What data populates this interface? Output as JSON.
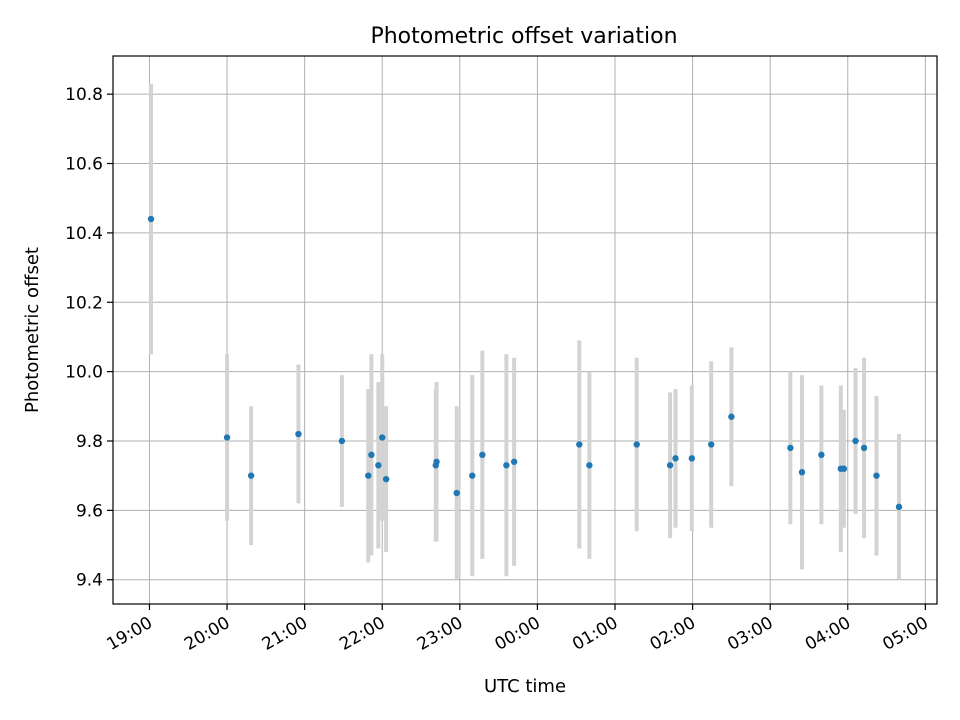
{
  "chart_data": {
    "type": "scatter",
    "title": "Photometric offset variation",
    "xlabel": "UTC time",
    "ylabel": "Photometric offset",
    "x_axis": "time",
    "xlim_hours": [
      18.53,
      29.15
    ],
    "ylim": [
      9.33,
      10.91
    ],
    "grid": true,
    "legend": "none",
    "x_ticks": [
      {
        "t": 19,
        "label": "19:00"
      },
      {
        "t": 20,
        "label": "20:00"
      },
      {
        "t": 21,
        "label": "21:00"
      },
      {
        "t": 22,
        "label": "22:00"
      },
      {
        "t": 23,
        "label": "23:00"
      },
      {
        "t": 24,
        "label": "00:00"
      },
      {
        "t": 25,
        "label": "01:00"
      },
      {
        "t": 26,
        "label": "02:00"
      },
      {
        "t": 27,
        "label": "03:00"
      },
      {
        "t": 28,
        "label": "04:00"
      },
      {
        "t": 29,
        "label": "05:00"
      }
    ],
    "y_ticks": [
      {
        "v": 9.4,
        "label": "9.4"
      },
      {
        "v": 9.6,
        "label": "9.6"
      },
      {
        "v": 9.8,
        "label": "9.8"
      },
      {
        "v": 10.0,
        "label": "10.0"
      },
      {
        "v": 10.2,
        "label": "10.2"
      },
      {
        "v": 10.4,
        "label": "10.4"
      },
      {
        "v": 10.6,
        "label": "10.6"
      },
      {
        "v": 10.8,
        "label": "10.8"
      }
    ],
    "colors": {
      "point": "#1f77b4",
      "errorbar": "#d3d3d3",
      "grid": "#b0b0b0"
    },
    "points": [
      {
        "t": 19.02,
        "y": 10.44,
        "err": 0.39
      },
      {
        "t": 20.0,
        "y": 9.81,
        "err": 0.24
      },
      {
        "t": 20.31,
        "y": 9.7,
        "err": 0.2
      },
      {
        "t": 20.92,
        "y": 9.82,
        "err": 0.2
      },
      {
        "t": 21.48,
        "y": 9.8,
        "err": 0.19
      },
      {
        "t": 21.82,
        "y": 9.7,
        "err": 0.25
      },
      {
        "t": 21.86,
        "y": 9.76,
        "err": 0.29
      },
      {
        "t": 21.95,
        "y": 9.73,
        "err": 0.24
      },
      {
        "t": 22.0,
        "y": 9.81,
        "err": 0.24
      },
      {
        "t": 22.05,
        "y": 9.69,
        "err": 0.21
      },
      {
        "t": 22.69,
        "y": 9.73,
        "err": 0.22
      },
      {
        "t": 22.7,
        "y": 9.74,
        "err": 0.23
      },
      {
        "t": 22.96,
        "y": 9.65,
        "err": 0.25
      },
      {
        "t": 23.16,
        "y": 9.7,
        "err": 0.29
      },
      {
        "t": 23.29,
        "y": 9.76,
        "err": 0.3
      },
      {
        "t": 23.6,
        "y": 9.73,
        "err": 0.32
      },
      {
        "t": 23.7,
        "y": 9.74,
        "err": 0.3
      },
      {
        "t": 24.54,
        "y": 9.79,
        "err": 0.3
      },
      {
        "t": 24.67,
        "y": 9.73,
        "err": 0.27
      },
      {
        "t": 25.28,
        "y": 9.79,
        "err": 0.25
      },
      {
        "t": 25.71,
        "y": 9.73,
        "err": 0.21
      },
      {
        "t": 25.78,
        "y": 9.75,
        "err": 0.2
      },
      {
        "t": 25.99,
        "y": 9.75,
        "err": 0.21
      },
      {
        "t": 26.24,
        "y": 9.79,
        "err": 0.24
      },
      {
        "t": 26.5,
        "y": 9.87,
        "err": 0.2
      },
      {
        "t": 27.26,
        "y": 9.78,
        "err": 0.22
      },
      {
        "t": 27.41,
        "y": 9.71,
        "err": 0.28
      },
      {
        "t": 27.66,
        "y": 9.76,
        "err": 0.2
      },
      {
        "t": 27.91,
        "y": 9.72,
        "err": 0.24
      },
      {
        "t": 27.95,
        "y": 9.72,
        "err": 0.17
      },
      {
        "t": 28.1,
        "y": 9.8,
        "err": 0.21
      },
      {
        "t": 28.21,
        "y": 9.78,
        "err": 0.26
      },
      {
        "t": 28.37,
        "y": 9.7,
        "err": 0.23
      },
      {
        "t": 28.66,
        "y": 9.61,
        "err": 0.21
      }
    ]
  }
}
